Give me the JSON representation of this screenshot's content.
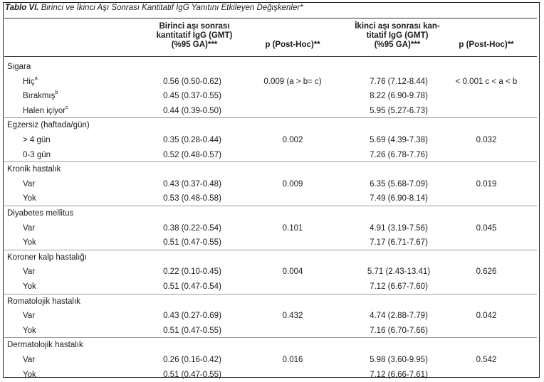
{
  "caption": {
    "number": "Tablo VI.",
    "text": "Birinci ve İkinci Aşı Sonrası Kantitatif IgG Yanıtını Etkileyen Değişkenler*"
  },
  "headers": {
    "first_gmt": [
      "Birinci aşı sonrası",
      "kantitatif IgG (GMT)",
      "(%95 GA)***"
    ],
    "p1": "p (Post-Hoc)**",
    "second_gmt": [
      "İkinci aşı sonrası kan-",
      "titatif IgG (GMT)",
      "(%95 GA)***"
    ],
    "p2": "p (Post-Hoc)**"
  },
  "rows": [
    {
      "label": "Sigara",
      "group": true
    },
    {
      "label": "Hiç",
      "sup": "a",
      "gmt1": "0.56 (0.50-0.62)",
      "p1": "0.009 (a > b= c)",
      "gmt2": "7.76 (7.12-8.44)",
      "p2": "< 0.001 c < a < b"
    },
    {
      "label": "Bırakmış",
      "sup": "b",
      "gmt1": "0.45 (0.37-0.55)",
      "p1": "",
      "gmt2": "8.22 (6.90-9.78)",
      "p2": ""
    },
    {
      "label": "Halen içiyor",
      "sup": "c",
      "gmt1": "0.44 (0.39-0.50)",
      "p1": "",
      "gmt2": "5.95 (5.27-6.73)",
      "p2": ""
    },
    {
      "label": "Egzersiz (haftada/gün)",
      "group": true
    },
    {
      "label": "> 4 gün",
      "gmt1": "0.35 (0.28-0.44)",
      "p1": "0.002",
      "gmt2": "5.69 (4.39-7.38)",
      "p2": "0.032"
    },
    {
      "label": "0-3 gün",
      "gmt1": "0.52 (0.48-0.57)",
      "p1": "",
      "gmt2": "7.26 (6.78-7.76)",
      "p2": ""
    },
    {
      "label": "Kronik hastalık",
      "group": true
    },
    {
      "label": "Var",
      "gmt1": "0.43 (0.37-0.48)",
      "p1": "0.009",
      "gmt2": "6.35 (5.68-7.09)",
      "p2": "0.019"
    },
    {
      "label": "Yok",
      "gmt1": "0.53 (0.48-0.58)",
      "p1": "",
      "gmt2": "7.49 (6.90-8.14)",
      "p2": ""
    },
    {
      "label": "Diyabetes mellitus",
      "group": true
    },
    {
      "label": "Var",
      "gmt1": "0.38 (0.22-0.54)",
      "p1": "0.101",
      "gmt2": "4.91 (3.19-7.56)",
      "p2": "0.045"
    },
    {
      "label": "Yok",
      "gmt1": "0.51 (0.47-0.55)",
      "p1": "",
      "gmt2": "7.17 (6.71-7.67)",
      "p2": ""
    },
    {
      "label": "Koroner kalp hastalığı",
      "group": true
    },
    {
      "label": "Var",
      "gmt1": "0.22 (0.10-0.45)",
      "p1": "0.004",
      "gmt2": "5.71 (2.43-13.41)",
      "p2": "0.626"
    },
    {
      "label": "Yok",
      "gmt1": "0.51 (0.47-0.54)",
      "p1": "",
      "gmt2": "7.12 (6.67-7.60)",
      "p2": ""
    },
    {
      "label": "Romatolojik hastalık",
      "group": true
    },
    {
      "label": "Var",
      "gmt1": "0.43 (0.27-0.69)",
      "p1": "0.432",
      "gmt2": "4.74 (2.88-7.79)",
      "p2": "0.042"
    },
    {
      "label": "Yok",
      "gmt1": "0.51 (0.47-0.55)",
      "p1": "",
      "gmt2": "7.16 (6.70-7.66)",
      "p2": ""
    },
    {
      "label": "Dermatolojik hastalık",
      "group": true
    },
    {
      "label": "Var",
      "gmt1": "0.26 (0.16-0.42)",
      "p1": "0.016",
      "gmt2": "5.98 (3.60-9.95)",
      "p2": "0.542"
    },
    {
      "label": "Yok",
      "gmt1": "0.51 (0.47-0.55)",
      "p1": "",
      "gmt2": "7.12 (6.66-7.61)",
      "p2": ""
    }
  ]
}
